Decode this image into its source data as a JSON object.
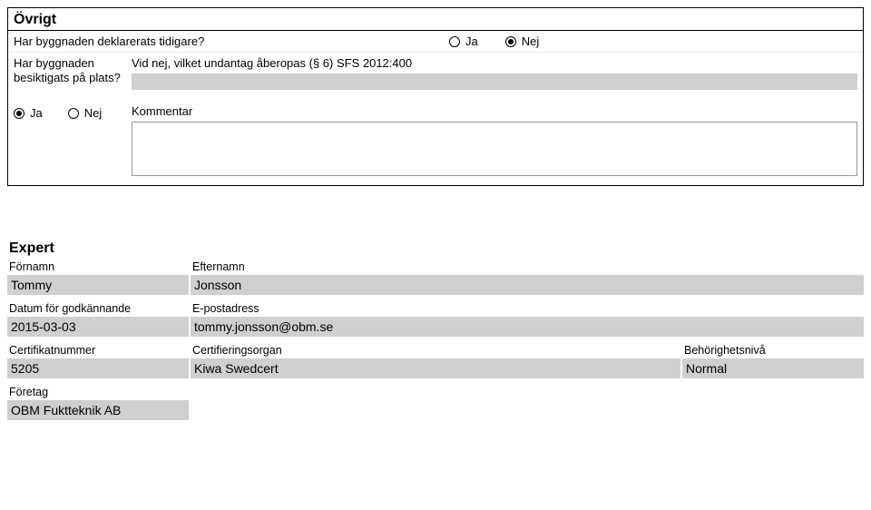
{
  "ovrigt": {
    "title": "Övrigt",
    "q1": {
      "label": "Har byggnaden deklarerats tidigare?",
      "ja": "Ja",
      "nej": "Nej",
      "ja_selected": false,
      "nej_selected": true
    },
    "q2": {
      "left": "Har byggnaden besiktigats på plats?",
      "right_label": "Vid nej, vilket undantag åberopas (§ 6) SFS 2012:400"
    },
    "q3": {
      "ja": "Ja",
      "nej": "Nej",
      "ja_selected": true,
      "nej_selected": false,
      "label": "Kommentar"
    }
  },
  "expert": {
    "title": "Expert",
    "fn_label": "Förnamn",
    "fn": "Tommy",
    "en_label": "Efternamn",
    "en": "Jonsson",
    "date_label": "Datum för godkännande",
    "date": "2015-03-03",
    "email_label": "E-postadress",
    "email": "tommy.jonsson@obm.se",
    "cert_label": "Certifikatnummer",
    "cert": "5205",
    "org_label": "Certifieringsorgan",
    "org": "Kiwa Swedcert",
    "level_label": "Behörighetsnivå",
    "level": "Normal",
    "company_label": "Företag",
    "company": "OBM Fuktteknik AB"
  },
  "colors": {
    "field_bg": "#cfcfcf",
    "border": "#000000",
    "page_bg": "#ffffff"
  }
}
